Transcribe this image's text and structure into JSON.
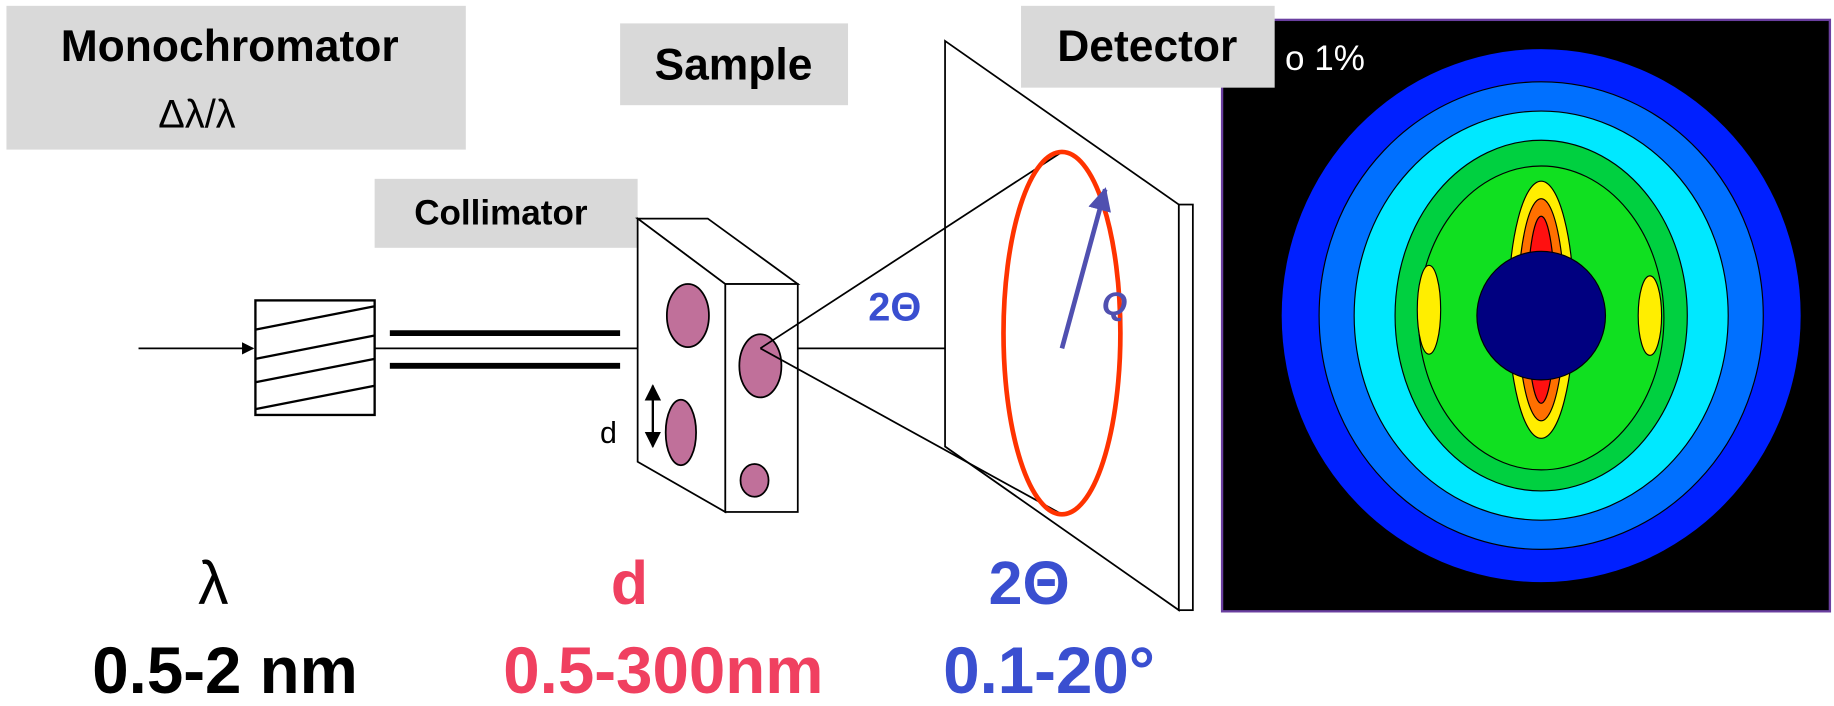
{
  "labels": {
    "monochromator": "Monochromator",
    "resolution": "Δλ/λ",
    "sample": "Sample",
    "collimator": "Collimator",
    "detector": "Detector",
    "contour_note": "o 1%",
    "d_small": "d",
    "angle": "2Θ",
    "q": "Q"
  },
  "parameters": [
    {
      "symbol": "λ",
      "range": "0.5-2 nm"
    },
    {
      "symbol": "d",
      "range": "0.5-300nm"
    },
    {
      "symbol": "2Θ",
      "range": "0.1-20°"
    }
  ]
}
